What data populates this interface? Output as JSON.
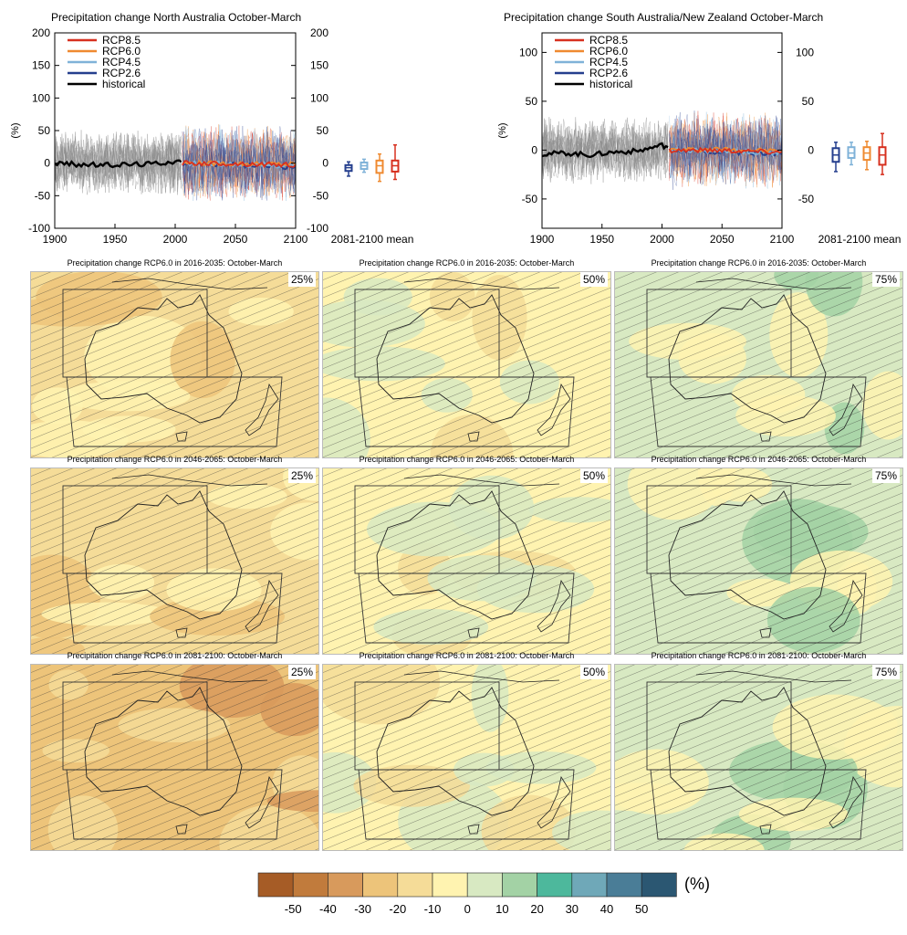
{
  "chart_data": [
    {
      "type": "line",
      "title": "Precipitation change North Australia October-March",
      "ylabel": "(%)",
      "xlim": [
        1900,
        2100
      ],
      "ylim": [
        -100,
        200
      ],
      "xticks": [
        "1900",
        "1950",
        "2000",
        "2050",
        "2100"
      ],
      "yticks": [
        "-100",
        "-50",
        "0",
        "50",
        "100",
        "150",
        "200"
      ],
      "legend": [
        "RCP8.5",
        "RCP6.0",
        "RCP4.5",
        "RCP2.6",
        "historical"
      ],
      "legend_position": "top-left",
      "side_label": "2081-2100 mean",
      "series": [
        {
          "name": "historical",
          "x": [
            1900,
            1920,
            1940,
            1960,
            1980,
            2000,
            2005
          ],
          "values": [
            0,
            -2,
            -3,
            -2,
            -1,
            3,
            2
          ]
        },
        {
          "name": "RCP2.6",
          "x": [
            2006,
            2050,
            2100
          ],
          "values": [
            0,
            -3,
            -6
          ]
        },
        {
          "name": "RCP4.5",
          "x": [
            2006,
            2050,
            2100
          ],
          "values": [
            0,
            -2,
            -4
          ]
        },
        {
          "name": "RCP6.0",
          "x": [
            2006,
            2050,
            2100
          ],
          "values": [
            0,
            -1,
            -2
          ]
        },
        {
          "name": "RCP8.5",
          "x": [
            2006,
            2050,
            2100
          ],
          "values": [
            0,
            -1,
            -3
          ]
        }
      ],
      "box_2081_2100": [
        {
          "name": "RCP2.6",
          "min": -20,
          "q1": -12,
          "median": -7,
          "q3": -3,
          "max": 2
        },
        {
          "name": "RCP4.5",
          "min": -14,
          "q1": -9,
          "median": -4,
          "q3": 1,
          "max": 6
        },
        {
          "name": "RCP6.0",
          "min": -28,
          "q1": -15,
          "median": -4,
          "q3": 4,
          "max": 14
        },
        {
          "name": "RCP8.5",
          "min": -25,
          "q1": -13,
          "median": -4,
          "q3": 4,
          "max": 28
        }
      ]
    },
    {
      "type": "line",
      "title": "Precipitation change South Australia/New Zealand October-March",
      "ylabel": "(%)",
      "xlim": [
        1900,
        2100
      ],
      "ylim": [
        -80,
        120
      ],
      "xticks": [
        "1900",
        "1950",
        "2000",
        "2050",
        "2100"
      ],
      "yticks": [
        "-50",
        "0",
        "50",
        "100"
      ],
      "legend": [
        "RCP8.5",
        "RCP6.0",
        "RCP4.5",
        "RCP2.6",
        "historical"
      ],
      "legend_position": "top-left",
      "side_label": "2081-2100 mean",
      "series": [
        {
          "name": "historical",
          "x": [
            1900,
            1920,
            1940,
            1960,
            1980,
            2000,
            2005
          ],
          "values": [
            -4,
            -3,
            -5,
            -2,
            -1,
            5,
            3
          ]
        },
        {
          "name": "RCP2.6",
          "x": [
            2006,
            2050,
            2100
          ],
          "values": [
            0,
            -2,
            -4
          ]
        },
        {
          "name": "RCP4.5",
          "x": [
            2006,
            2050,
            2100
          ],
          "values": [
            0,
            -1,
            -3
          ]
        },
        {
          "name": "RCP6.0",
          "x": [
            2006,
            2050,
            2100
          ],
          "values": [
            0,
            1,
            -1
          ]
        },
        {
          "name": "RCP8.5",
          "x": [
            2006,
            2050,
            2100
          ],
          "values": [
            0,
            0,
            -2
          ]
        }
      ],
      "box_2081_2100": [
        {
          "name": "RCP2.6",
          "min": -22,
          "q1": -12,
          "median": -5,
          "q3": 2,
          "max": 8
        },
        {
          "name": "RCP4.5",
          "min": -15,
          "q1": -8,
          "median": -3,
          "q3": 3,
          "max": 8
        },
        {
          "name": "RCP6.0",
          "min": -20,
          "q1": -10,
          "median": -3,
          "q3": 3,
          "max": 9
        },
        {
          "name": "RCP8.5",
          "min": -25,
          "q1": -15,
          "median": -5,
          "q3": 3,
          "max": 17
        }
      ]
    },
    {
      "type": "heatmap",
      "maps": [
        {
          "title": "Precipitation change RCP6.0 in 2016-2035: October-March",
          "percentile": "25%",
          "dominant_class": -10
        },
        {
          "title": "Precipitation change RCP6.0 in 2016-2035: October-March",
          "percentile": "50%",
          "dominant_class": 0
        },
        {
          "title": "Precipitation change RCP6.0 in 2016-2035: October-March",
          "percentile": "75%",
          "dominant_class": 10
        },
        {
          "title": "Precipitation change RCP6.0 in 2046-2065: October-March",
          "percentile": "25%",
          "dominant_class": -10
        },
        {
          "title": "Precipitation change RCP6.0 in 2046-2065: October-March",
          "percentile": "50%",
          "dominant_class": 0
        },
        {
          "title": "Precipitation change RCP6.0 in 2046-2065: October-March",
          "percentile": "75%",
          "dominant_class": 10
        },
        {
          "title": "Precipitation change RCP6.0 in 2081-2100: October-March",
          "percentile": "25%",
          "dominant_class": -20
        },
        {
          "title": "Precipitation change RCP6.0 in 2081-2100: October-March",
          "percentile": "50%",
          "dominant_class": 0
        },
        {
          "title": "Precipitation change RCP6.0 in 2081-2100: October-March",
          "percentile": "75%",
          "dominant_class": 10
        }
      ],
      "colorbar": {
        "unit": "(%)",
        "ticks": [
          "-50",
          "-40",
          "-30",
          "-20",
          "-10",
          "0",
          "10",
          "20",
          "30",
          "40",
          "50"
        ],
        "colors": [
          "#a65c26",
          "#c17b3c",
          "#d89a5c",
          "#edc47a",
          "#f5dc98",
          "#fff3b0",
          "#d8e9c2",
          "#a3d2a5",
          "#4db89c",
          "#6fa8b8",
          "#4a7d97",
          "#2b5772"
        ]
      }
    }
  ],
  "colors": {
    "RCP8.5": "#d7301f",
    "RCP6.0": "#ef8a30",
    "RCP4.5": "#7fb2d8",
    "RCP2.6": "#253f8e",
    "historical": "#000000",
    "hist_members": "#8a8a8a"
  }
}
